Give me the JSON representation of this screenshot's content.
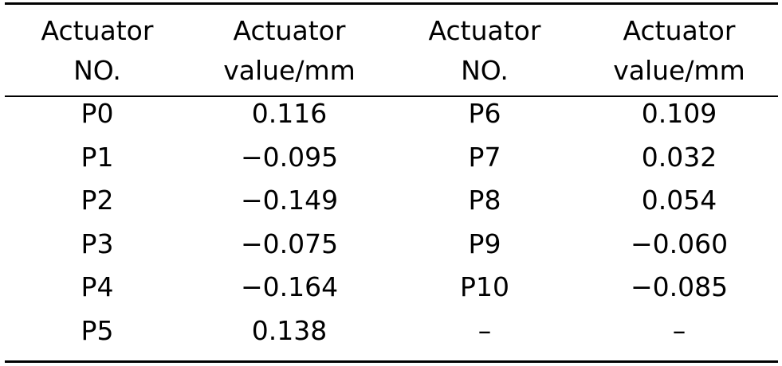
{
  "table": {
    "headers": [
      {
        "line1": "Actuator",
        "line2": "NO."
      },
      {
        "line1": "Actuator",
        "line2": "value/mm"
      },
      {
        "line1": "Actuator",
        "line2": "NO."
      },
      {
        "line1": "Actuator",
        "line2": "value/mm"
      }
    ],
    "rows": [
      [
        "P0",
        "0.116",
        "P6",
        "0.109"
      ],
      [
        "P1",
        "−0.095",
        "P7",
        "0.032"
      ],
      [
        "P2",
        "−0.149",
        "P8",
        "0.054"
      ],
      [
        "P3",
        "−0.075",
        "P9",
        "−0.060"
      ],
      [
        "P4",
        "−0.164",
        "P10",
        "−0.085"
      ],
      [
        "P5",
        "0.138",
        "–",
        "–"
      ]
    ]
  }
}
